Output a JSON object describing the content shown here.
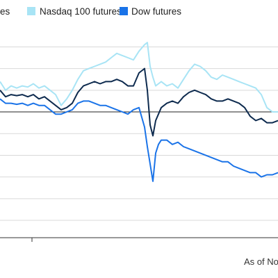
{
  "chart_data": {
    "type": "line",
    "legend_placement": "top",
    "grid": true,
    "gridline_values": [
      3,
      2,
      1,
      0,
      -1,
      -2,
      -3,
      -4,
      -5
    ],
    "baseline_value": 0,
    "xlim": [
      0,
      100
    ],
    "ylim": [
      -5.8,
      4.2
    ],
    "legend": [
      {
        "label": "es",
        "color": "#0d2a4e"
      },
      {
        "label": "Nasdaq 100 futures",
        "color": "#a8e4f5"
      },
      {
        "label": "Dow futures",
        "color": "#1a73e8"
      }
    ],
    "note": "As of No",
    "series": [
      {
        "key": "nasdaq",
        "color": "#a8e4f5",
        "x": [
          0,
          2,
          4,
          6,
          8,
          10,
          12,
          14,
          16,
          18,
          20,
          22,
          24,
          26,
          28,
          30,
          32,
          34,
          36,
          38,
          40,
          42,
          44,
          46,
          48,
          50,
          52,
          53,
          54,
          55,
          56,
          57,
          58,
          60,
          62,
          64,
          66,
          68,
          70,
          72,
          74,
          76,
          78,
          80,
          82,
          84,
          86,
          88,
          90,
          92,
          94,
          96,
          98,
          100
        ],
        "y": [
          1.4,
          1.0,
          1.2,
          1.1,
          1.2,
          1.15,
          1.3,
          1.1,
          1.2,
          1.0,
          0.8,
          0.3,
          0.6,
          1.0,
          1.5,
          1.9,
          2.0,
          2.1,
          2.2,
          2.3,
          2.5,
          2.7,
          2.6,
          2.5,
          2.4,
          2.8,
          3.1,
          3.2,
          2.1,
          1.6,
          1.2,
          1.3,
          1.4,
          1.2,
          1.3,
          1.1,
          1.5,
          1.9,
          2.2,
          2.1,
          1.9,
          1.6,
          1.5,
          1.7,
          1.6,
          1.5,
          1.4,
          1.3,
          1.2,
          1.1,
          0.8,
          0.2,
          0.0,
          0.0
        ]
      },
      {
        "key": "sp500",
        "color": "#0d2a4e",
        "x": [
          0,
          2,
          4,
          6,
          8,
          10,
          12,
          14,
          16,
          18,
          20,
          22,
          24,
          26,
          28,
          30,
          32,
          34,
          36,
          38,
          40,
          42,
          44,
          46,
          48,
          50,
          52,
          53,
          54,
          55,
          56,
          57,
          58,
          60,
          62,
          64,
          66,
          68,
          70,
          72,
          74,
          76,
          78,
          80,
          82,
          84,
          86,
          88,
          90,
          92,
          94,
          96,
          98,
          100
        ],
        "y": [
          1.0,
          0.7,
          0.8,
          0.75,
          0.8,
          0.7,
          0.8,
          0.6,
          0.7,
          0.5,
          0.3,
          0.1,
          0.2,
          0.4,
          0.9,
          1.2,
          1.3,
          1.4,
          1.3,
          1.4,
          1.4,
          1.5,
          1.4,
          1.2,
          1.2,
          1.8,
          2.0,
          1.0,
          -0.6,
          -1.1,
          -0.4,
          -0.1,
          0.2,
          0.4,
          0.5,
          0.4,
          0.7,
          0.9,
          1.0,
          0.9,
          0.8,
          0.6,
          0.5,
          0.5,
          0.6,
          0.5,
          0.4,
          0.2,
          -0.2,
          -0.4,
          -0.3,
          -0.5,
          -0.5,
          -0.4
        ]
      },
      {
        "key": "dow",
        "color": "#1a73e8",
        "x": [
          0,
          2,
          4,
          6,
          8,
          10,
          12,
          14,
          16,
          18,
          20,
          22,
          24,
          26,
          28,
          30,
          32,
          34,
          36,
          38,
          40,
          42,
          44,
          46,
          48,
          50,
          52,
          53,
          54,
          55,
          56,
          57,
          58,
          60,
          62,
          64,
          66,
          68,
          70,
          72,
          74,
          76,
          78,
          80,
          82,
          84,
          86,
          88,
          90,
          92,
          94,
          96,
          98,
          100
        ],
        "y": [
          0.6,
          0.4,
          0.4,
          0.35,
          0.4,
          0.3,
          0.4,
          0.3,
          0.3,
          0.1,
          -0.1,
          -0.1,
          0.0,
          0.1,
          0.4,
          0.5,
          0.5,
          0.4,
          0.3,
          0.3,
          0.2,
          0.1,
          0.0,
          -0.1,
          0.1,
          0.2,
          -0.7,
          -1.6,
          -2.4,
          -3.2,
          -1.9,
          -1.5,
          -1.3,
          -1.3,
          -1.5,
          -1.4,
          -1.6,
          -1.7,
          -1.8,
          -1.9,
          -2.0,
          -2.1,
          -2.2,
          -2.3,
          -2.3,
          -2.5,
          -2.6,
          -2.7,
          -2.8,
          -2.8,
          -3.0,
          -2.9,
          -2.9,
          -2.8
        ]
      }
    ]
  }
}
